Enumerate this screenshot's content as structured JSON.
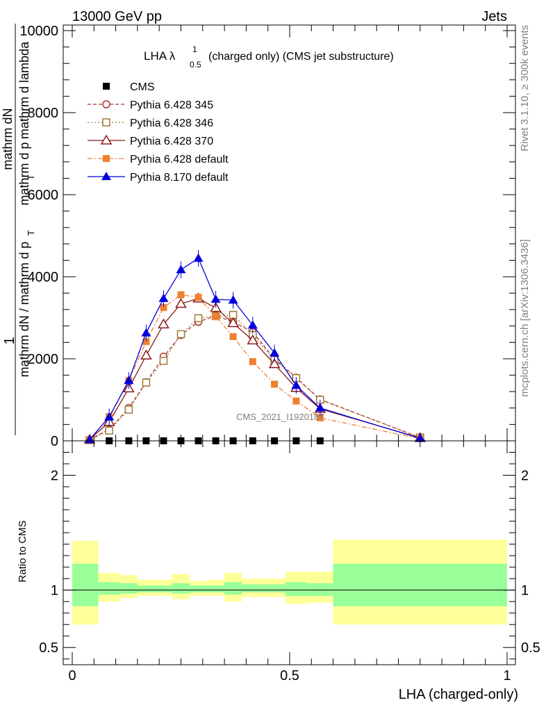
{
  "header": {
    "left": "13000 GeV pp",
    "right": "Jets"
  },
  "side": {
    "rivet": "Rivet 3.1.10, ≥ 300k events",
    "mcplots": "mcplots.cern.ch [arXiv:1306.3436]"
  },
  "watermark": "CMS_2021_I1920187",
  "chart_data": [
    {
      "type": "line",
      "title": "LHA λ",
      "title_sup": "1",
      "title_sub": "0.5",
      "title_rest": "(charged only) (CMS jet substructure)",
      "ylabel": {
        "prefix": "1",
        "num1": "mathrm dN",
        "den1": "mathrm dN / mathrm d p",
        "den1_sub": "T",
        "mid": "mathrm d p",
        "mid_sub": "T",
        "num2": "mathrm dN",
        "den2": "mathrm d p",
        "den2_sub": "T",
        "den2_rest": "mathrm d lambda"
      },
      "xlim": [
        0,
        1
      ],
      "ylim": [
        0,
        10000
      ],
      "yticks": [
        0,
        2000,
        4000,
        6000,
        8000,
        10000
      ],
      "ytick_labels": [
        "0",
        "2000",
        "4000",
        "6000",
        "8000",
        "10000"
      ],
      "legend_position": "top-left",
      "x": [
        0.04,
        0.085,
        0.13,
        0.17,
        0.21,
        0.25,
        0.29,
        0.33,
        0.37,
        0.415,
        0.465,
        0.515,
        0.57,
        0.8
      ],
      "series": [
        {
          "name": "CMS",
          "color": "#000000",
          "marker": "filled-square",
          "dash": "none",
          "x": [
            0.13,
            0.17,
            0.21,
            0.25,
            0.29,
            0.33,
            0.37,
            0.415,
            0.465,
            0.515,
            0.57,
            0.085
          ],
          "y": [
            0,
            0,
            0,
            0,
            0,
            0,
            0,
            0,
            0,
            0,
            0,
            0
          ]
        },
        {
          "name": "Pythia 6.428 345",
          "color": "#b03030",
          "marker": "open-circle",
          "dash": "dashed",
          "values": [
            30,
            280,
            800,
            1430,
            2050,
            2580,
            2900,
            3050,
            2900,
            2650,
            2000,
            1540,
            1010,
            80
          ]
        },
        {
          "name": "Pythia 6.428 346",
          "color": "#a07838",
          "marker": "open-square",
          "dash": "dotted",
          "values": [
            20,
            250,
            760,
            1420,
            1950,
            2600,
            2990,
            3040,
            3070,
            2580,
            1970,
            1530,
            1000,
            80
          ]
        },
        {
          "name": "Pythia 6.428 370",
          "color": "#8b1a1a",
          "marker": "open-triangle",
          "dash": "solid",
          "values": [
            30,
            460,
            1280,
            2080,
            2840,
            3340,
            3470,
            3240,
            2870,
            2450,
            1870,
            1290,
            780,
            70
          ]
        },
        {
          "name": "Pythia 6.428 default",
          "color": "#f08030",
          "marker": "filled-square",
          "dash": "dashdot",
          "values": [
            30,
            590,
            1470,
            2420,
            3250,
            3560,
            3500,
            3030,
            2540,
            1930,
            1380,
            970,
            560,
            50
          ]
        },
        {
          "name": "Pythia 8.170 default",
          "color": "#0000dd",
          "marker": "filled-triangle",
          "dash": "solid",
          "values": [
            30,
            580,
            1470,
            2630,
            3470,
            4170,
            4450,
            3450,
            3430,
            2820,
            2140,
            1350,
            800,
            60
          ]
        }
      ]
    },
    {
      "type": "area",
      "ylabel": "Ratio to CMS",
      "xlabel": "LHA (charged-only)",
      "xlim": [
        0,
        1
      ],
      "ylim": [
        0.35,
        2.3
      ],
      "yticks": [
        0.5,
        1,
        2
      ],
      "ytick_labels": [
        "0.5",
        "1",
        "2"
      ],
      "xticks": [
        0,
        0.5,
        1
      ],
      "xtick_labels": [
        "0",
        "0.5",
        "1"
      ],
      "bins": [
        {
          "x0": 0.0,
          "x1": 0.06,
          "outer": [
            0.7,
            1.43
          ],
          "inner": [
            0.86,
            1.23
          ]
        },
        {
          "x0": 0.06,
          "x1": 0.11,
          "outer": [
            0.9,
            1.15
          ],
          "inner": [
            0.96,
            1.07
          ]
        },
        {
          "x0": 0.11,
          "x1": 0.15,
          "outer": [
            0.93,
            1.13
          ],
          "inner": [
            0.97,
            1.06
          ]
        },
        {
          "x0": 0.15,
          "x1": 0.19,
          "outer": [
            0.95,
            1.09
          ],
          "inner": [
            0.98,
            1.04
          ]
        },
        {
          "x0": 0.19,
          "x1": 0.23,
          "outer": [
            0.95,
            1.09
          ],
          "inner": [
            0.98,
            1.04
          ]
        },
        {
          "x0": 0.23,
          "x1": 0.27,
          "outer": [
            0.92,
            1.14
          ],
          "inner": [
            0.97,
            1.06
          ]
        },
        {
          "x0": 0.27,
          "x1": 0.31,
          "outer": [
            0.95,
            1.08
          ],
          "inner": [
            0.98,
            1.04
          ]
        },
        {
          "x0": 0.31,
          "x1": 0.35,
          "outer": [
            0.95,
            1.09
          ],
          "inner": [
            0.98,
            1.04
          ]
        },
        {
          "x0": 0.35,
          "x1": 0.39,
          "outer": [
            0.9,
            1.15
          ],
          "inner": [
            0.96,
            1.07
          ]
        },
        {
          "x0": 0.39,
          "x1": 0.44,
          "outer": [
            0.94,
            1.1
          ],
          "inner": [
            0.98,
            1.05
          ]
        },
        {
          "x0": 0.44,
          "x1": 0.49,
          "outer": [
            0.94,
            1.1
          ],
          "inner": [
            0.98,
            1.05
          ]
        },
        {
          "x0": 0.49,
          "x1": 0.54,
          "outer": [
            0.88,
            1.16
          ],
          "inner": [
            0.95,
            1.07
          ]
        },
        {
          "x0": 0.54,
          "x1": 0.6,
          "outer": [
            0.89,
            1.16
          ],
          "inner": [
            0.95,
            1.06
          ]
        },
        {
          "x0": 0.6,
          "x1": 1.0,
          "outer": [
            0.7,
            1.44
          ],
          "inner": [
            0.86,
            1.23
          ]
        }
      ],
      "colors": {
        "outer": "#ffff99",
        "inner": "#99ff99"
      }
    }
  ]
}
